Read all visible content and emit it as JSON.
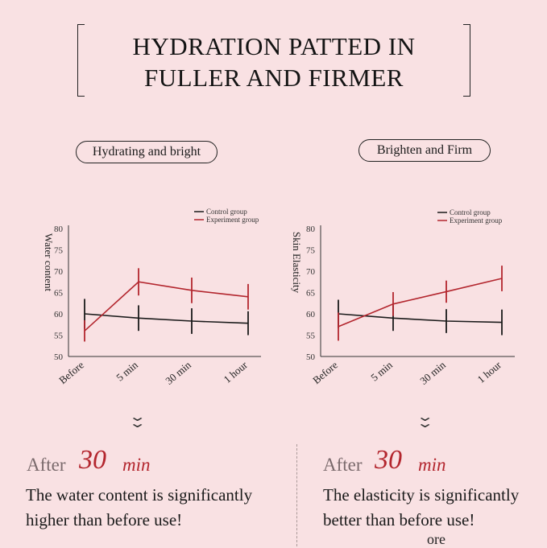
{
  "headline": {
    "line1": "HYDRATION PATTED IN",
    "line2": "FULLER AND FIRMER"
  },
  "pills": {
    "left": "Hydrating and bright",
    "right": "Brighten and Firm"
  },
  "colors": {
    "control": "#1a1a1a",
    "experiment": "#b3262e",
    "background": "#f9e1e3"
  },
  "chart_data": [
    {
      "type": "line",
      "ylabel": "Water content",
      "categories": [
        "Before",
        "5 min",
        "30 min",
        "1 hour"
      ],
      "ylim": [
        50,
        80
      ],
      "yticks": [
        50,
        55,
        60,
        65,
        70,
        75,
        80
      ],
      "legend": [
        "Control group",
        "Experiment group"
      ],
      "legend_position": "top-right",
      "series": [
        {
          "name": "Control group",
          "values": [
            60,
            59,
            58.3,
            57.8
          ],
          "error": [
            3.5,
            3,
            3,
            2.8
          ]
        },
        {
          "name": "Experiment group",
          "values": [
            56,
            67.5,
            65.5,
            64
          ],
          "error": [
            2.5,
            3.2,
            3,
            3
          ]
        }
      ]
    },
    {
      "type": "line",
      "ylabel": "Skin Elasticity",
      "categories": [
        "Before",
        "5 min",
        "30 min",
        "1 hour"
      ],
      "ylim": [
        50,
        80
      ],
      "yticks": [
        50,
        55,
        60,
        65,
        70,
        75,
        80
      ],
      "legend": [
        "Control group",
        "Experiment group"
      ],
      "legend_position": "top-right",
      "series": [
        {
          "name": "Control group",
          "values": [
            60,
            59,
            58.3,
            58
          ],
          "error": [
            3.3,
            3,
            2.8,
            3
          ]
        },
        {
          "name": "Experiment group",
          "values": [
            57,
            62.3,
            65.2,
            68.3
          ],
          "error": [
            3.3,
            2.8,
            2.6,
            3
          ]
        }
      ]
    }
  ],
  "results": {
    "left": {
      "after": "After",
      "num": "30",
      "unit": "min",
      "line1": "The water content is significantly",
      "line2": "higher than before use!"
    },
    "right": {
      "after": "After",
      "num": "30",
      "unit": "min",
      "line1": "The elasticity is significantly",
      "line2": "better than before use!"
    }
  },
  "fragment": "ore",
  "chevron": "⌄"
}
